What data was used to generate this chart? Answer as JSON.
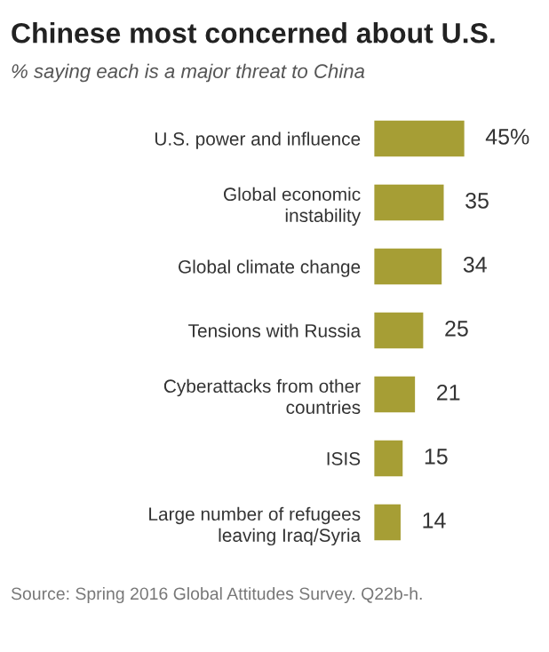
{
  "chart_data": {
    "type": "bar",
    "orientation": "horizontal",
    "title": "Chinese most concerned about U.S.",
    "subtitle": "% saying each is a major threat to China",
    "categories": [
      "U.S. power and influence",
      "Global economic\ninstability",
      "Global climate change",
      "Tensions with Russia",
      "Cyberattacks from other\ncountries",
      "ISIS",
      "Large number of refugees\nleaving Iraq/Syria"
    ],
    "values": [
      45,
      35,
      34,
      25,
      21,
      15,
      14
    ],
    "value_labels": [
      "45%",
      "35",
      "34",
      "25",
      "21",
      "15",
      "14"
    ],
    "color": "#a69e35",
    "annotations": [
      "Source: Spring 2016 Global Attitudes Survey. Q22b-h."
    ],
    "grid": false,
    "legend": false,
    "tick_labels": "y"
  }
}
